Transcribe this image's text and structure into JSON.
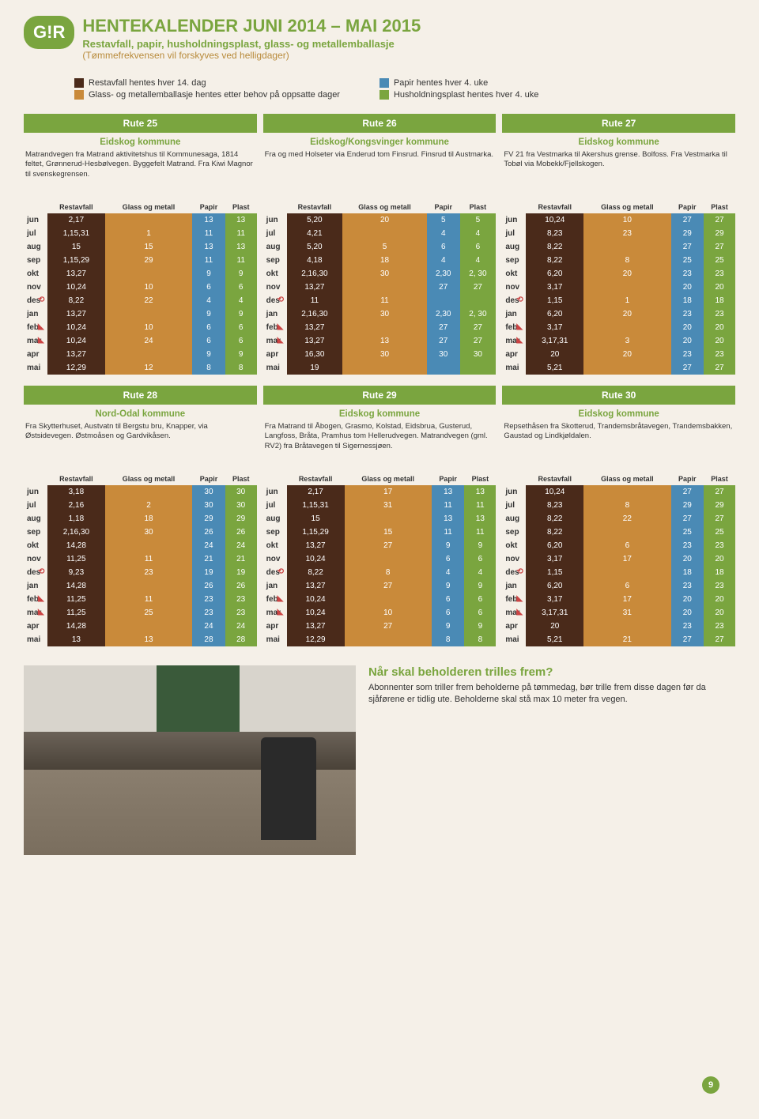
{
  "header": {
    "logo": "G!R",
    "title": "HENTEKALENDER JUNI 2014 – MAI 2015",
    "sub1": "Restavfall, papir, husholdningsplast, glass- og metallemballasje",
    "sub2": "(Tømmefrekvensen vil forskyves ved helligdager)"
  },
  "legend": {
    "col1": [
      {
        "color": "#4a2a1a",
        "txt": "Restavfall hentes hver 14. dag"
      },
      {
        "color": "#c98a3a",
        "txt": "Glass- og metallemballasje hentes etter behov på oppsatte dager"
      }
    ],
    "col2": [
      {
        "color": "#4a8ab5",
        "txt": "Papir hentes hver 4. uke"
      },
      {
        "color": "#7aa53f",
        "txt": "Husholdningsplast hentes hver 4. uke"
      }
    ]
  },
  "cols": [
    "",
    "Restavfall",
    "Glass og metall",
    "Papir",
    "Plast"
  ],
  "months": [
    "jun",
    "jul",
    "aug",
    "sep",
    "okt",
    "nov",
    "des",
    "jan",
    "feb",
    "mar",
    "apr",
    "mai"
  ],
  "flags": {
    "des": "⟲",
    "feb": "◣",
    "mar": "◣"
  },
  "rutes1": [
    {
      "n": "Rute 25",
      "k": "Eidskog kommune",
      "d": "Matrandvegen fra Matrand aktivitetshus til Kommunesaga, 1814 feltet, Grønnerud-Hesbølvegen. Byggefelt Matrand. Fra Kiwi Magnor til svenskegrensen.",
      "rows": [
        [
          "2,17",
          "",
          "13",
          "13"
        ],
        [
          "1,15,31",
          "1",
          "11",
          "11"
        ],
        [
          "15",
          "15",
          "13",
          "13"
        ],
        [
          "1,15,29",
          "29",
          "11",
          "11"
        ],
        [
          "13,27",
          "",
          "9",
          "9"
        ],
        [
          "10,24",
          "10",
          "6",
          "6"
        ],
        [
          "8,22",
          "22",
          "4",
          "4"
        ],
        [
          "13,27",
          "",
          "9",
          "9"
        ],
        [
          "10,24",
          "10",
          "6",
          "6"
        ],
        [
          "10,24",
          "24",
          "6",
          "6"
        ],
        [
          "13,27",
          "",
          "9",
          "9"
        ],
        [
          "12,29",
          "12",
          "8",
          "8"
        ]
      ]
    },
    {
      "n": "Rute 26",
      "k": "Eidskog/Kongsvinger kommune",
      "d": "Fra og med Holseter via Enderud tom Finsrud. Finsrud til Austmarka.",
      "rows": [
        [
          "5,20",
          "20",
          "5",
          "5"
        ],
        [
          "4,21",
          "",
          "4",
          "4"
        ],
        [
          "5,20",
          "5",
          "6",
          "6"
        ],
        [
          "4,18",
          "18",
          "4",
          "4"
        ],
        [
          "2,16,30",
          "30",
          "2,30",
          "2, 30"
        ],
        [
          "13,27",
          "",
          "27",
          "27"
        ],
        [
          "11",
          "11",
          "",
          ""
        ],
        [
          "2,16,30",
          "30",
          "2,30",
          "2, 30"
        ],
        [
          "13,27",
          "",
          "27",
          "27"
        ],
        [
          "13,27",
          "13",
          "27",
          "27"
        ],
        [
          "16,30",
          "30",
          "30",
          "30"
        ],
        [
          "19",
          "",
          "",
          ""
        ]
      ]
    },
    {
      "n": "Rute 27",
      "k": "Eidskog kommune",
      "d": "FV 21 fra Vestmarka til Akershus grense. Bolfoss. Fra Vestmarka til Tobøl via Mobekk/Fjellskogen.",
      "rows": [
        [
          "10,24",
          "10",
          "27",
          "27"
        ],
        [
          "8,23",
          "23",
          "29",
          "29"
        ],
        [
          "8,22",
          "",
          "27",
          "27"
        ],
        [
          "8,22",
          "8",
          "25",
          "25"
        ],
        [
          "6,20",
          "20",
          "23",
          "23"
        ],
        [
          "3,17",
          "",
          "20",
          "20"
        ],
        [
          "1,15",
          "1",
          "18",
          "18"
        ],
        [
          "6,20",
          "20",
          "23",
          "23"
        ],
        [
          "3,17",
          "",
          "20",
          "20"
        ],
        [
          "3,17,31",
          "3",
          "20",
          "20"
        ],
        [
          "20",
          "20",
          "23",
          "23"
        ],
        [
          "5,21",
          "",
          "27",
          "27"
        ]
      ]
    }
  ],
  "rutes2": [
    {
      "n": "Rute 28",
      "k": "Nord-Odal kommune",
      "d": "Fra Skytterhuset, Austvatn til Bergstu bru, Knapper, via Østsidevegen. Østmoåsen og Gardvikåsen.",
      "rows": [
        [
          "3,18",
          "",
          "30",
          "30"
        ],
        [
          "2,16",
          "2",
          "30",
          "30"
        ],
        [
          "1,18",
          "18",
          "29",
          "29"
        ],
        [
          "2,16,30",
          "30",
          "26",
          "26"
        ],
        [
          "14,28",
          "",
          "24",
          "24"
        ],
        [
          "11,25",
          "11",
          "21",
          "21"
        ],
        [
          "9,23",
          "23",
          "19",
          "19"
        ],
        [
          "14,28",
          "",
          "26",
          "26"
        ],
        [
          "11,25",
          "11",
          "23",
          "23"
        ],
        [
          "11,25",
          "25",
          "23",
          "23"
        ],
        [
          "14,28",
          "",
          "24",
          "24"
        ],
        [
          "13",
          "13",
          "28",
          "28"
        ]
      ]
    },
    {
      "n": "Rute 29",
      "k": "Eidskog kommune",
      "d": "Fra Matrand til Åbogen, Grasmo, Kolstad, Eidsbrua, Gusterud, Langfoss, Bråta, Pramhus tom Hellerudvegen. Matrandvegen (gml. RV2) fra Bråtavegen til Sigernessjøen.",
      "rows": [
        [
          "2,17",
          "17",
          "13",
          "13"
        ],
        [
          "1,15,31",
          "31",
          "11",
          "11"
        ],
        [
          "15",
          "",
          "13",
          "13"
        ],
        [
          "1,15,29",
          "15",
          "11",
          "11"
        ],
        [
          "13,27",
          "27",
          "9",
          "9"
        ],
        [
          "10,24",
          "",
          "6",
          "6"
        ],
        [
          "8,22",
          "8",
          "4",
          "4"
        ],
        [
          "13,27",
          "27",
          "9",
          "9"
        ],
        [
          "10,24",
          "",
          "6",
          "6"
        ],
        [
          "10,24",
          "10",
          "6",
          "6"
        ],
        [
          "13,27",
          "27",
          "9",
          "9"
        ],
        [
          "12,29",
          "",
          "8",
          "8"
        ]
      ]
    },
    {
      "n": "Rute 30",
      "k": "Eidskog kommune",
      "d": "Repsethåsen fra Skotterud, Trandemsbråtavegen, Trandemsbakken, Gaustad og Lindkjøldalen.",
      "rows": [
        [
          "10,24",
          "",
          "27",
          "27"
        ],
        [
          "8,23",
          "8",
          "29",
          "29"
        ],
        [
          "8,22",
          "22",
          "27",
          "27"
        ],
        [
          "8,22",
          "",
          "25",
          "25"
        ],
        [
          "6,20",
          "6",
          "23",
          "23"
        ],
        [
          "3,17",
          "17",
          "20",
          "20"
        ],
        [
          "1,15",
          "",
          "18",
          "18"
        ],
        [
          "6,20",
          "6",
          "23",
          "23"
        ],
        [
          "3,17",
          "17",
          "20",
          "20"
        ],
        [
          "3,17,31",
          "31",
          "20",
          "20"
        ],
        [
          "20",
          "",
          "23",
          "23"
        ],
        [
          "5,21",
          "21",
          "27",
          "27"
        ]
      ]
    }
  ],
  "bottom": {
    "h": "Når skal beholderen trilles frem?",
    "p": "Abonnenter som triller frem beholderne på tømmedag, bør trille frem disse dagen før da sjåførene er tidlig ute. Beholderne skal stå max 10 meter fra vegen."
  },
  "page": "9"
}
